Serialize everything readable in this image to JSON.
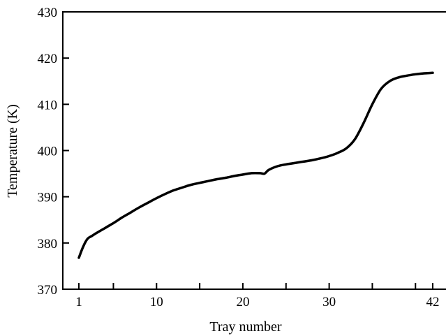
{
  "chart_data": {
    "type": "line",
    "title": "",
    "xlabel": "Tray number",
    "ylabel": "Temperature (K)",
    "xlim": [
      0,
      42
    ],
    "ylim": [
      370,
      430
    ],
    "x_ticks": [
      1,
      10,
      20,
      30,
      42
    ],
    "x_minor_ticks": [
      5,
      15,
      25,
      35,
      40
    ],
    "y_ticks": [
      370,
      380,
      390,
      400,
      410,
      420,
      430
    ],
    "grid": false,
    "legend": "none",
    "line_color": "#000000",
    "series": [
      {
        "x": [
          1,
          1.5,
          2,
          2.5,
          3,
          4,
          5,
          6,
          7,
          8,
          9,
          10,
          11,
          12,
          13,
          14,
          15,
          16,
          17,
          18,
          19,
          20,
          21,
          22,
          22.5,
          23,
          24,
          25,
          26,
          27,
          28,
          29,
          30,
          31,
          32,
          33,
          34,
          35,
          36,
          37,
          38,
          39,
          40,
          41,
          42
        ],
        "values": [
          376.8,
          379.2,
          380.9,
          381.5,
          382.1,
          383.2,
          384.3,
          385.5,
          386.6,
          387.7,
          388.7,
          389.7,
          390.6,
          391.4,
          392.0,
          392.6,
          393.0,
          393.4,
          393.8,
          394.1,
          394.5,
          394.8,
          395.1,
          395.1,
          395.0,
          395.8,
          396.6,
          397.0,
          397.3,
          397.6,
          397.9,
          398.3,
          398.8,
          399.5,
          400.5,
          402.5,
          406.0,
          410.0,
          413.3,
          415.0,
          415.8,
          416.2,
          416.5,
          416.7,
          416.8
        ]
      }
    ]
  }
}
